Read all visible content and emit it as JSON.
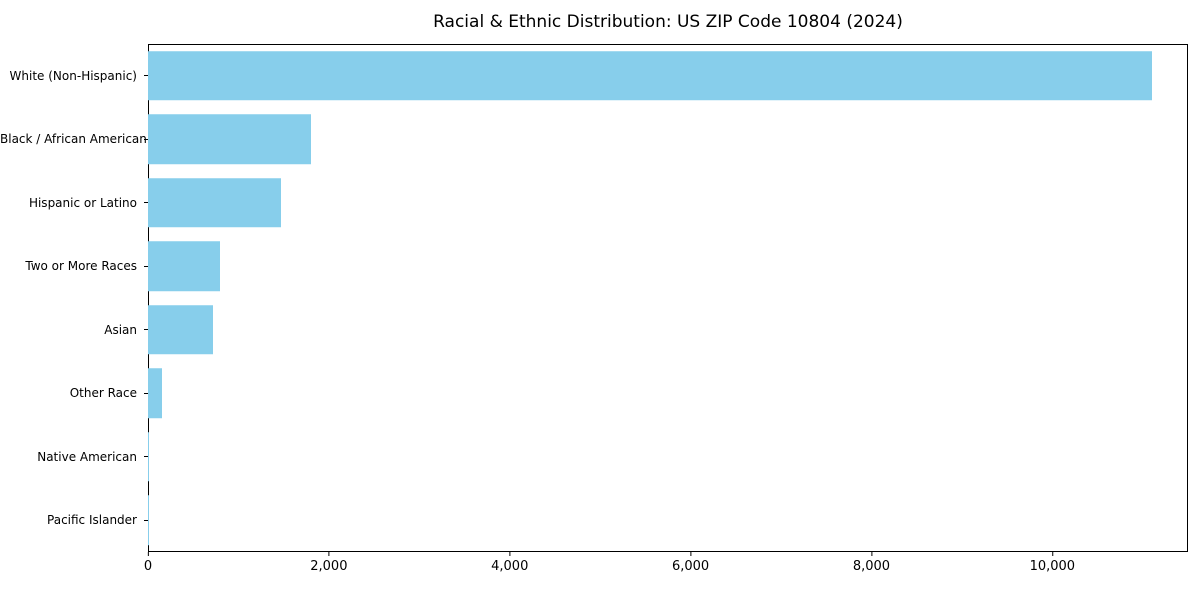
{
  "chart_data": {
    "type": "bar",
    "orientation": "horizontal",
    "title": "Racial & Ethnic Distribution: US ZIP Code 10804 (2024)",
    "categories": [
      "White (Non-Hispanic)",
      "Black / African American",
      "Hispanic or Latino",
      "Two or More Races",
      "Asian",
      "Other Race",
      "Native American",
      "Pacific Islander"
    ],
    "values": [
      11100,
      1800,
      1470,
      800,
      720,
      150,
      10,
      5
    ],
    "xlabel": "",
    "ylabel": "",
    "xlim": [
      0,
      11500
    ],
    "xticks": {
      "values": [
        0,
        2000,
        4000,
        6000,
        8000,
        10000
      ],
      "labels": [
        "0",
        "2,000",
        "4,000",
        "6,000",
        "8,000",
        "10,000"
      ]
    },
    "bar_color": "#87CEEB",
    "grid": false,
    "legend": null
  }
}
